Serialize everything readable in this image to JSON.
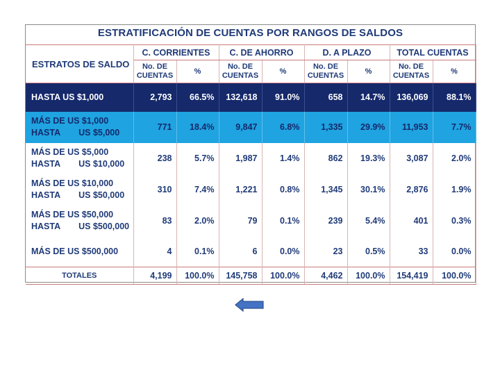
{
  "title": "ESTRATIFICACIÓN DE CUENTAS POR RANGOS DE SALDOS",
  "header": {
    "strata_label": "ESTRATOS DE SALDO",
    "groups": [
      "C. CORRIENTES",
      "C. DE AHORRO",
      "D. A PLAZO",
      "TOTAL CUENTAS"
    ],
    "sub_count": "No. DE CUENTAS",
    "sub_pct": "%"
  },
  "rows": [
    {
      "line1": "HASTA US $1,000",
      "line2": "",
      "values": [
        "2,793",
        "66.5%",
        "132,618",
        "91.0%",
        "658",
        "14.7%",
        "136,069",
        "88.1%"
      ]
    },
    {
      "line1": "MÁS DE US $1,000",
      "line2a": "HASTA",
      "line2b": "US $5,000",
      "values": [
        "771",
        "18.4%",
        "9,847",
        "6.8%",
        "1,335",
        "29.9%",
        "11,953",
        "7.7%"
      ]
    },
    {
      "line1": "MÁS DE US $5,000",
      "line2a": "HASTA",
      "line2b": "US $10,000",
      "values": [
        "238",
        "5.7%",
        "1,987",
        "1.4%",
        "862",
        "19.3%",
        "3,087",
        "2.0%"
      ]
    },
    {
      "line1": "MÁS DE US $10,000",
      "line2a": "HASTA",
      "line2b": "US $50,000",
      "values": [
        "310",
        "7.4%",
        "1,221",
        "0.8%",
        "1,345",
        "30.1%",
        "2,876",
        "1.9%"
      ]
    },
    {
      "line1": "MÁS DE US $50,000",
      "line2a": "HASTA",
      "line2b": "US $500,000",
      "values": [
        "83",
        "2.0%",
        "79",
        "0.1%",
        "239",
        "5.4%",
        "401",
        "0.3%"
      ]
    },
    {
      "line1": "MÁS DE US $500,000",
      "line2": "",
      "values": [
        "4",
        "0.1%",
        "6",
        "0.0%",
        "23",
        "0.5%",
        "33",
        "0.0%"
      ]
    }
  ],
  "totals": {
    "label": "TOTALES",
    "values": [
      "4,199",
      "100.0%",
      "145,758",
      "100.0%",
      "4,462",
      "100.0%",
      "154,419",
      "100.0%"
    ]
  },
  "nav": {
    "back_icon": "left-arrow-icon",
    "color": "#4472c4"
  },
  "colors": {
    "title": "#1f3a78",
    "dark_row": "#15296b",
    "light_row": "#1fa3e1"
  }
}
